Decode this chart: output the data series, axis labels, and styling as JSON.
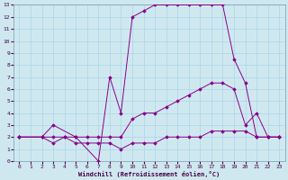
{
  "xlabel": "Windchill (Refroidissement éolien,°C)",
  "background_color": "#cfe8f0",
  "grid_color": "#b0d8e8",
  "line_color": "#880088",
  "xlim": [
    -0.5,
    23.5
  ],
  "ylim": [
    0,
    13
  ],
  "xticks": [
    0,
    1,
    2,
    3,
    4,
    5,
    6,
    7,
    8,
    9,
    10,
    11,
    12,
    13,
    14,
    15,
    16,
    17,
    18,
    19,
    20,
    21,
    22,
    23
  ],
  "yticks": [
    0,
    1,
    2,
    3,
    4,
    5,
    6,
    7,
    8,
    9,
    10,
    11,
    12,
    13
  ],
  "series": [
    {
      "x": [
        0,
        2,
        3,
        5,
        7,
        8,
        9,
        10,
        11,
        12,
        13,
        14,
        15,
        16,
        17,
        18,
        19,
        20,
        21,
        22,
        23
      ],
      "y": [
        2,
        2,
        3,
        2,
        0,
        7,
        4,
        12,
        12.5,
        13,
        13,
        13,
        13,
        13,
        13,
        13,
        8.5,
        6.5,
        2,
        2,
        2
      ]
    },
    {
      "x": [
        0,
        2,
        3,
        4,
        5,
        6,
        7,
        8,
        9,
        10,
        11,
        12,
        13,
        14,
        15,
        16,
        17,
        18,
        19,
        20,
        21,
        22,
        23
      ],
      "y": [
        2,
        2,
        2,
        2,
        2,
        2,
        2,
        2,
        2,
        3.5,
        4,
        4,
        4.5,
        5,
        5.5,
        6,
        6.5,
        6.5,
        6,
        3,
        4,
        2,
        2
      ]
    },
    {
      "x": [
        0,
        2,
        3,
        4,
        5,
        6,
        7,
        8,
        9,
        10,
        11,
        12,
        13,
        14,
        15,
        16,
        17,
        18,
        19,
        20,
        21,
        22,
        23
      ],
      "y": [
        2,
        2,
        1.5,
        2,
        1.5,
        1.5,
        1.5,
        1.5,
        1,
        1.5,
        1.5,
        1.5,
        2,
        2,
        2,
        2,
        2.5,
        2.5,
        2.5,
        2.5,
        2,
        2,
        2
      ]
    }
  ]
}
